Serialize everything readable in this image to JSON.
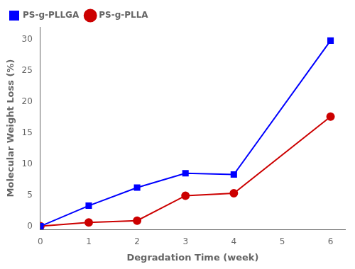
{
  "chart_data": {
    "type": "line",
    "xlabel": "Degradation Time (week)",
    "ylabel": "Molecular Weight Loss (%)",
    "xlim": [
      0,
      6.3
    ],
    "ylim": [
      -0.5,
      32
    ],
    "xticks": [
      0,
      1,
      2,
      3,
      4,
      5,
      6
    ],
    "yticks": [
      0,
      5,
      10,
      15,
      20,
      25,
      30
    ],
    "grid": false,
    "legend": "upper left",
    "series": [
      {
        "name": "PS-g-PLLGA",
        "color": "#0000FF",
        "marker": "square",
        "x": [
          0,
          1,
          2,
          3,
          4,
          6
        ],
        "values": [
          0,
          3.3,
          6.2,
          8.5,
          8.3,
          29.8
        ]
      },
      {
        "name": "PS-g-PLLA",
        "color": "#CC0000",
        "marker": "circle",
        "x": [
          0,
          1,
          2,
          3,
          4,
          6
        ],
        "values": [
          0,
          0.6,
          0.9,
          4.9,
          5.3,
          17.6
        ]
      }
    ]
  }
}
